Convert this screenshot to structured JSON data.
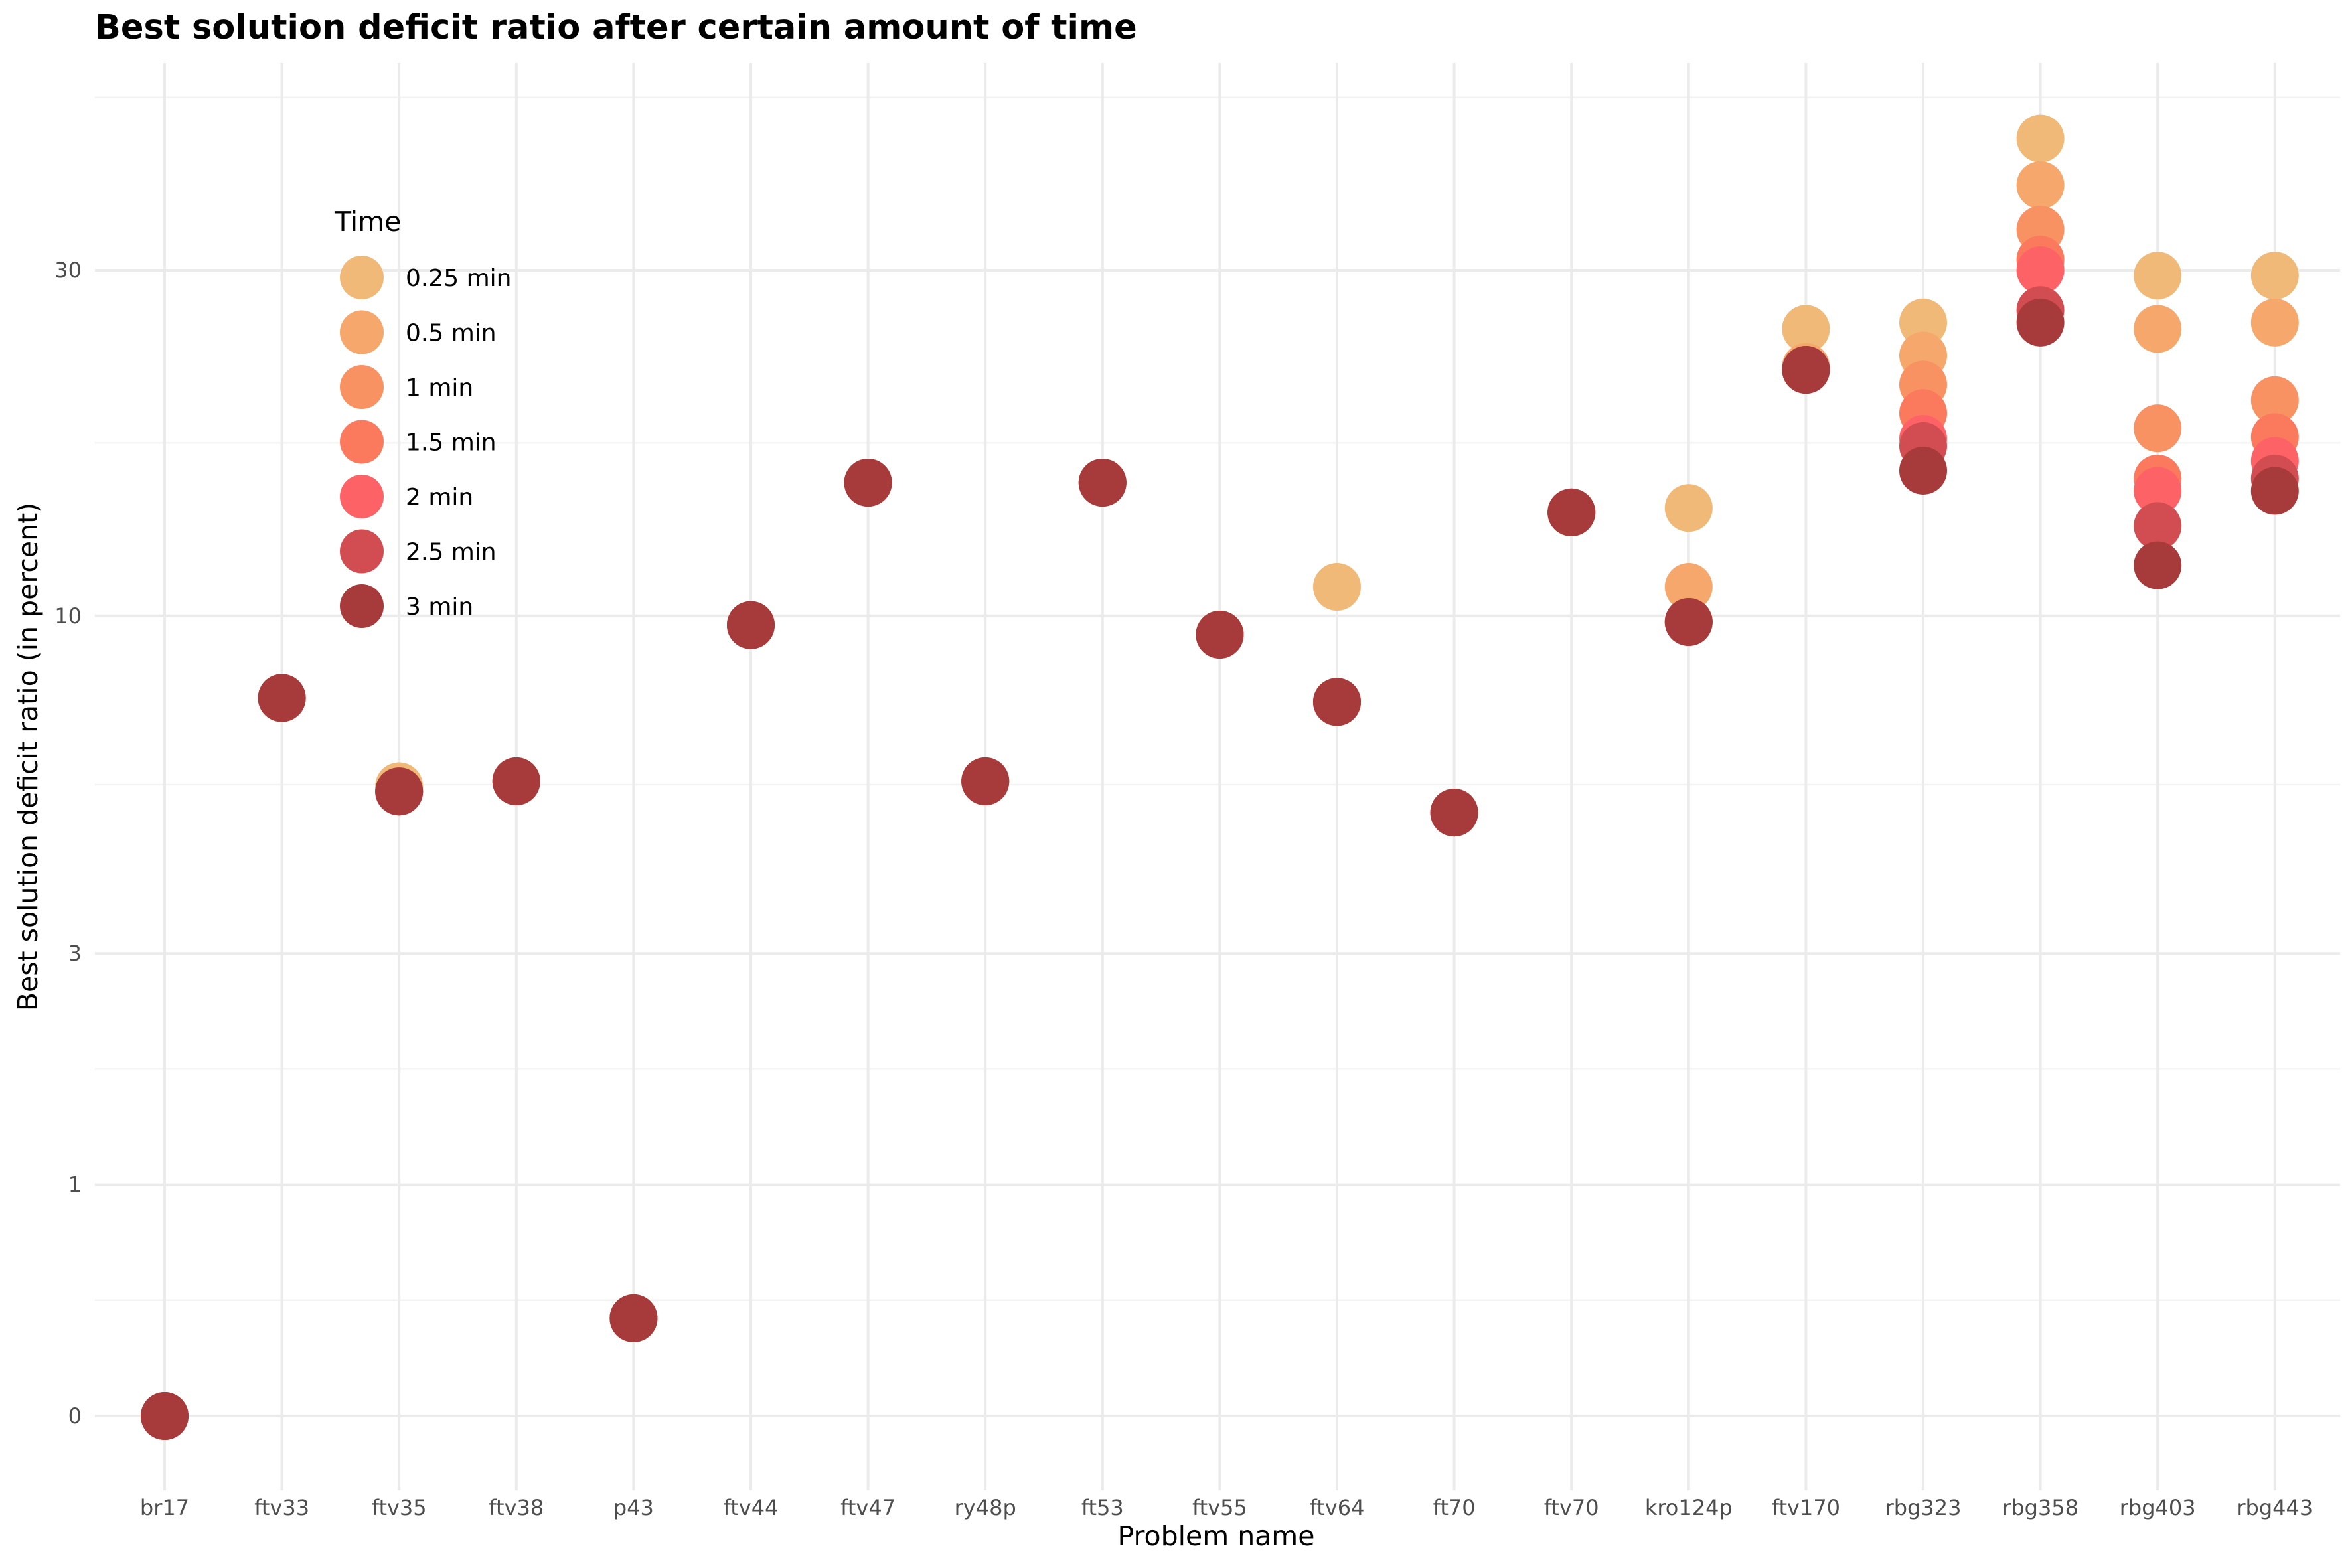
{
  "chart_data": {
    "type": "scatter",
    "title": "Best solution deficit ratio after certain amount of time",
    "xlabel": "Problem name",
    "ylabel": "Best solution deficit ratio (in percent)",
    "y_scale": "log1p",
    "y_ticks": [
      0,
      1,
      3,
      10,
      30
    ],
    "y_tick_labels": [
      "0",
      "1",
      "3",
      "10",
      "30"
    ],
    "grid": true,
    "legend": {
      "title": "Time",
      "placement": "top-left"
    },
    "categories": [
      "br17",
      "ftv33",
      "ftv35",
      "ftv38",
      "p43",
      "ftv44",
      "ftv47",
      "ry48p",
      "ft53",
      "ftv55",
      "ftv64",
      "ft70",
      "ftv70",
      "kro124p",
      "ftv170",
      "rbg323",
      "rbg358",
      "rbg403",
      "rbg443"
    ],
    "series": [
      {
        "name": "0.25 min",
        "color": "#f0b978",
        "values": [
          0,
          7.6,
          5.6,
          5.7,
          0.34,
          9.7,
          15.4,
          5.7,
          15.4,
          9.4,
          11.0,
          5.1,
          14.0,
          14.2,
          25.0,
          25.5,
          45.0,
          29.5,
          29.5
        ]
      },
      {
        "name": "0.5 min",
        "color": "#f5a76c",
        "values": [
          0,
          7.6,
          5.5,
          5.7,
          0.34,
          9.7,
          15.4,
          5.7,
          15.4,
          9.4,
          7.5,
          5.1,
          14.0,
          11.0,
          22.2,
          23.0,
          39.0,
          25.0,
          25.5
        ]
      },
      {
        "name": "1 min",
        "color": "#f89263",
        "values": [
          0,
          7.6,
          5.5,
          5.7,
          0.34,
          9.7,
          15.4,
          5.7,
          15.4,
          9.4,
          7.5,
          5.1,
          14.0,
          9.8,
          22.0,
          21.0,
          34.0,
          18.3,
          20.0
        ]
      },
      {
        "name": "1.5 min",
        "color": "#fb7a5e",
        "values": [
          0,
          7.6,
          5.5,
          5.7,
          0.34,
          9.7,
          15.4,
          5.7,
          15.4,
          9.4,
          7.5,
          5.1,
          14.0,
          9.8,
          22.0,
          19.2,
          31.0,
          15.6,
          17.8
        ]
      },
      {
        "name": "2 min",
        "color": "#fd6366",
        "values": [
          0,
          7.6,
          5.5,
          5.7,
          0.34,
          9.7,
          15.4,
          5.7,
          15.4,
          9.4,
          7.5,
          5.1,
          14.0,
          9.8,
          22.0,
          17.7,
          30.0,
          15.0,
          16.5
        ]
      },
      {
        "name": "2.5 min",
        "color": "#d24d51",
        "values": [
          0,
          7.6,
          5.5,
          5.7,
          0.34,
          9.7,
          15.4,
          5.7,
          15.4,
          9.4,
          7.5,
          5.1,
          14.0,
          9.8,
          22.0,
          17.3,
          26.5,
          13.4,
          15.6
        ]
      },
      {
        "name": "3 min",
        "color": "#a73a3a",
        "values": [
          0,
          7.6,
          5.5,
          5.7,
          0.34,
          9.7,
          15.4,
          5.7,
          15.4,
          9.4,
          7.5,
          5.1,
          14.0,
          9.8,
          22.0,
          16.0,
          25.5,
          11.8,
          15.0
        ]
      }
    ]
  }
}
